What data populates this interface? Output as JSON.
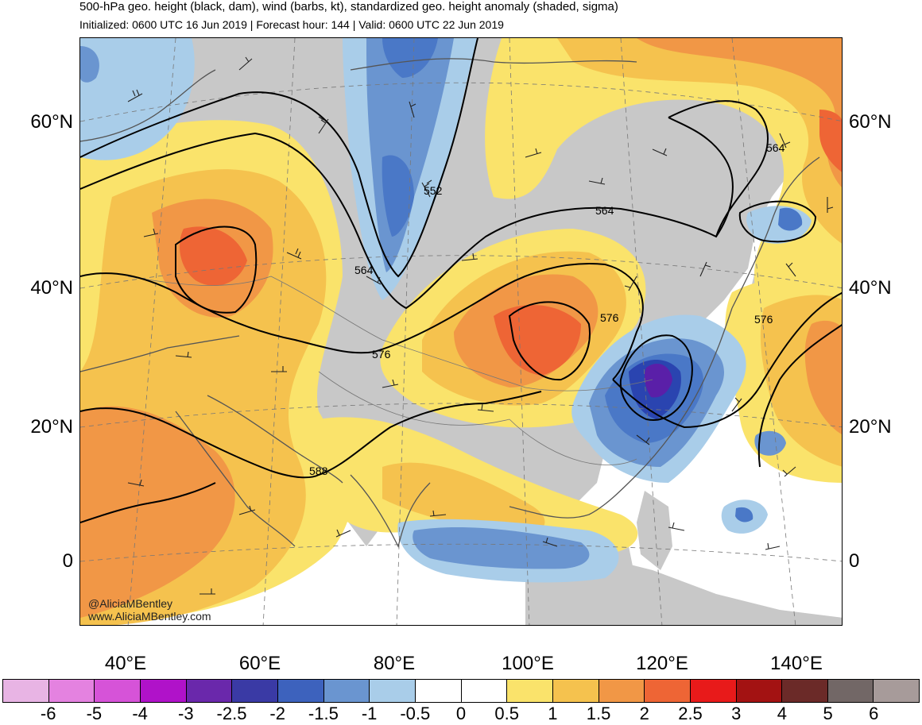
{
  "header": {
    "title": "500-hPa geo. height (black, dam), wind (barbs, kt), standardized geo. height anomaly (shaded, sigma)",
    "subtitle": "Initialized: 0600 UTC 16 Jun 2019 | Forecast hour: 144 | Valid: 0600 UTC 22 Jun 2019"
  },
  "map": {
    "lat_labels_left": [
      "60°N",
      "40°N",
      "20°N",
      "0"
    ],
    "lat_labels_right": [
      "60°N",
      "40°N",
      "20°N",
      "0"
    ],
    "lon_labels": [
      "40°E",
      "60°E",
      "80°E",
      "100°E",
      "120°E",
      "140°E"
    ],
    "contour_labels": [
      "552",
      "564",
      "564",
      "564",
      "576",
      "576",
      "576",
      "588"
    ],
    "colors": {
      "land": "#c8c8c8",
      "coast": "#555555",
      "contour": "#000000"
    },
    "anomaly_regions": [
      {
        "sigma": "pos-0.5",
        "color": "#fae36b"
      },
      {
        "sigma": "pos-1",
        "color": "#f5c24e"
      },
      {
        "sigma": "pos-1.5",
        "color": "#f19746"
      },
      {
        "sigma": "pos-2",
        "color": "#ee6535"
      },
      {
        "sigma": "neg-0.5",
        "color": "#a9cde9"
      },
      {
        "sigma": "neg-1",
        "color": "#6f9fd6"
      },
      {
        "sigma": "neg-1.5",
        "color": "#4a78c7"
      },
      {
        "sigma": "neg-2",
        "color": "#2a44b0"
      },
      {
        "sigma": "neg-2.5",
        "color": "#5a1fa8"
      }
    ]
  },
  "credits": {
    "handle": "@AliciaMBentley",
    "website": "www.AliciaMBentley.com"
  },
  "colorbar": {
    "labels": [
      "-6",
      "-5",
      "-4",
      "-3",
      "-2.5",
      "-2",
      "-1.5",
      "-1",
      "-0.5",
      "0",
      "0.5",
      "1",
      "1.5",
      "2",
      "2.5",
      "3",
      "4",
      "5",
      "6"
    ],
    "colors": [
      "#e8b4e4",
      "#e482e0",
      "#d653d8",
      "#b012c9",
      "#6a28ab",
      "#3a3aa5",
      "#3d62bd",
      "#6a95d0",
      "#a9cde9",
      "#ffffff",
      "#ffffff",
      "#fae36b",
      "#f5c24e",
      "#f19746",
      "#ee6535",
      "#e81a1a",
      "#a31212",
      "#6b2a28",
      "#726766",
      "#a79b9a"
    ]
  }
}
